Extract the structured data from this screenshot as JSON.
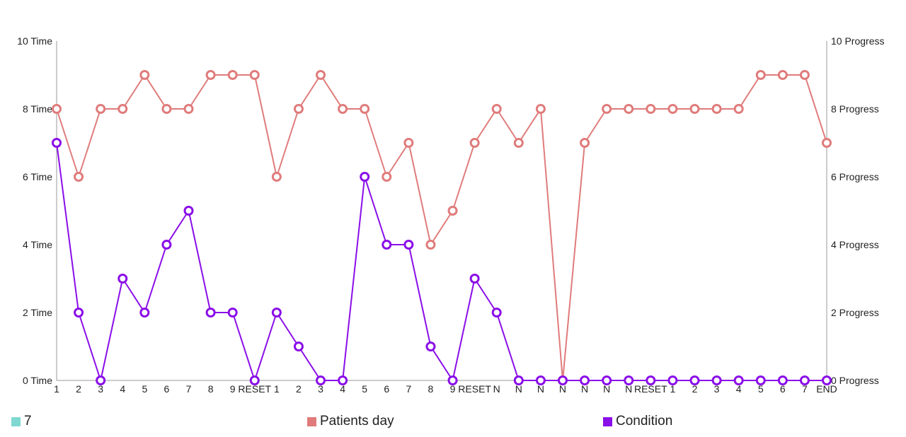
{
  "chart_data": {
    "type": "line",
    "categories": [
      "1",
      "2",
      "3",
      "4",
      "5",
      "6",
      "7",
      "8",
      "9",
      "RESET",
      "1",
      "2",
      "3",
      "4",
      "5",
      "6",
      "7",
      "8",
      "9",
      "RESET",
      "N",
      "N",
      "N",
      "N",
      "N",
      "N",
      "N",
      "RESET",
      "1",
      "2",
      "3",
      "4",
      "5",
      "6",
      "7",
      "END"
    ],
    "series": [
      {
        "name": "Patients day",
        "color": "#e07b7b",
        "axis": "right",
        "values": [
          8,
          6,
          8,
          8,
          9,
          8,
          8,
          9,
          9,
          9,
          6,
          8,
          9,
          8,
          8,
          6,
          7,
          4,
          5,
          7,
          8,
          7,
          8,
          0,
          7,
          8,
          8,
          8,
          8,
          8,
          8,
          8,
          9,
          9,
          9,
          7
        ]
      },
      {
        "name": "Condition",
        "color": "#8a0ee8",
        "axis": "left",
        "values": [
          7,
          2,
          0,
          3,
          2,
          4,
          5,
          2,
          2,
          0,
          2,
          1,
          0,
          0,
          6,
          4,
          4,
          1,
          0,
          3,
          2,
          0,
          0,
          0,
          0,
          0,
          0,
          0,
          0,
          0,
          0,
          0,
          0,
          0,
          0,
          0
        ]
      }
    ],
    "legend_extra": {
      "name": "7",
      "color": "#7fd8d0"
    },
    "left_axis": {
      "ticks": [
        "0 Time",
        "2 Time",
        "4 Time",
        "6 Time",
        "8 Time",
        "10 Time"
      ],
      "ylim": [
        0,
        10
      ]
    },
    "right_axis": {
      "ticks": [
        "0 Progress",
        "2 Progress",
        "4 Progress",
        "6 Progress",
        "8 Progress",
        "10 Progress"
      ],
      "ylim": [
        0,
        10
      ]
    },
    "grid": false,
    "legend_position": "bottom"
  }
}
